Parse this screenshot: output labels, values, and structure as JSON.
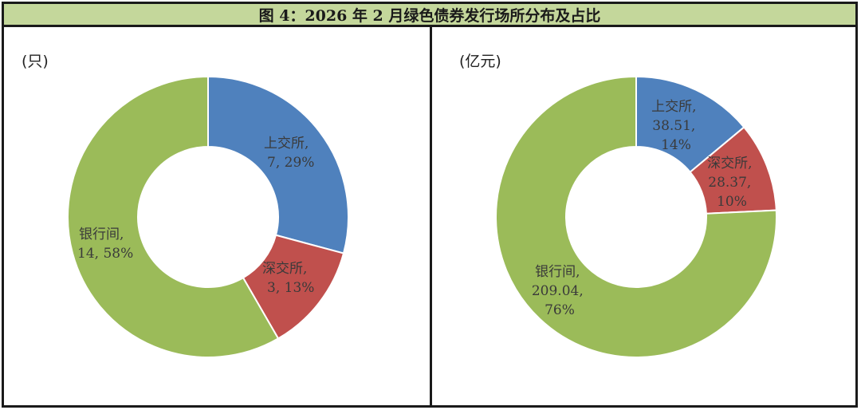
{
  "title": "图 4：2026 年 2 月绿色债券发行场所分布及占比",
  "colors": {
    "title_bg": "#c4d79b",
    "border": "#1a1a1a",
    "sse": "#4f81bd",
    "szse": "#c0504d",
    "interbank": "#9bbb59"
  },
  "chart_data": [
    {
      "type": "pie",
      "subtype": "donut",
      "title": "",
      "unit_label": "(只)",
      "categories": [
        "上交所",
        "深交所",
        "银行间"
      ],
      "values": [
        7,
        3,
        14
      ],
      "percentages": [
        29,
        13,
        58
      ],
      "colors": [
        "#4f81bd",
        "#c0504d",
        "#9bbb59"
      ],
      "labels": [
        {
          "line1": "上交所,",
          "line2": "7, 29%"
        },
        {
          "line1": "深交所,",
          "line2": "3, 13%"
        },
        {
          "line1": "银行间,",
          "line2": "14, 58%"
        }
      ],
      "start_angle_deg": 0,
      "direction": "clockwise",
      "legend": "none"
    },
    {
      "type": "pie",
      "subtype": "donut",
      "title": "",
      "unit_label": "(亿元)",
      "categories": [
        "上交所",
        "深交所",
        "银行间"
      ],
      "values": [
        38.51,
        28.37,
        209.04
      ],
      "percentages": [
        14,
        10,
        76
      ],
      "colors": [
        "#4f81bd",
        "#c0504d",
        "#9bbb59"
      ],
      "labels": [
        {
          "line1": "上交所,",
          "line2": "38.51,",
          "line3": "14%"
        },
        {
          "line1": "深交所,",
          "line2": "28.37,",
          "line3": "10%"
        },
        {
          "line1": "银行间,",
          "line2": "209.04,",
          "line3": "76%"
        }
      ],
      "start_angle_deg": 0,
      "direction": "clockwise",
      "legend": "none"
    }
  ]
}
